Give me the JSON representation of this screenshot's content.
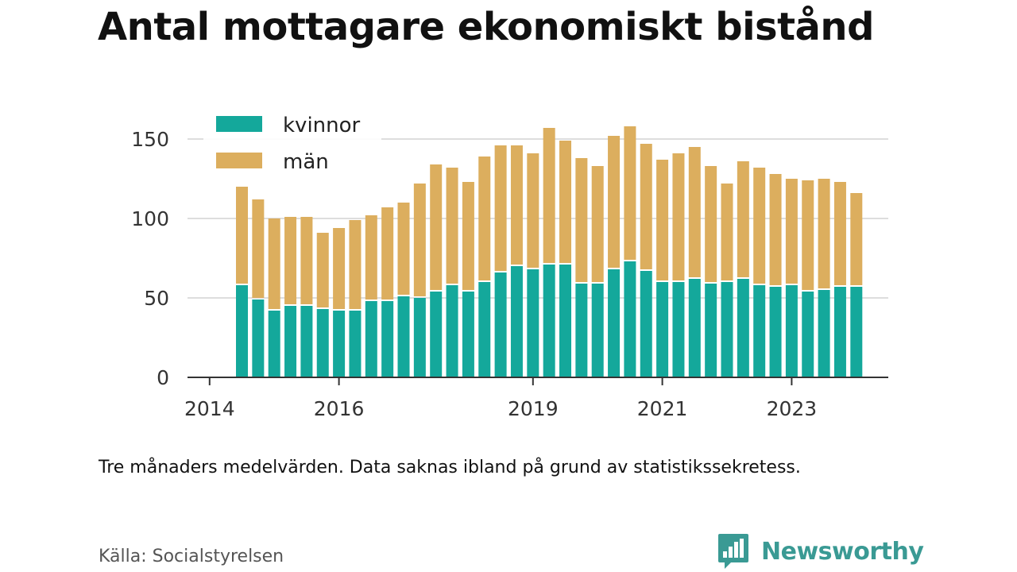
{
  "title": "Antal mottagare ekonomiskt bistånd",
  "note": "Tre månaders medelvärden. Data saknas ibland på grund av statistikssekretess.",
  "source": "Källa: Socialstyrelsen",
  "brand": {
    "name": "Newsworthy",
    "icon": "newsworthy-logo-icon"
  },
  "colors": {
    "kvinnor": "#14a89b",
    "man": "#dcae5e",
    "grid": "#dddddd",
    "axis": "#333333"
  },
  "chart_data": {
    "type": "bar",
    "stacked": true,
    "x": [
      "2014-07",
      "2014-10",
      "2015-01",
      "2015-04",
      "2015-07",
      "2015-10",
      "2016-01",
      "2016-04",
      "2016-07",
      "2016-10",
      "2017-01",
      "2017-04",
      "2017-07",
      "2017-10",
      "2018-01",
      "2018-04",
      "2018-07",
      "2018-10",
      "2019-01",
      "2019-04",
      "2019-07",
      "2019-10",
      "2020-01",
      "2020-04",
      "2020-07",
      "2020-10",
      "2021-01",
      "2021-04",
      "2021-07",
      "2021-10",
      "2022-01",
      "2022-04",
      "2022-07",
      "2022-10",
      "2023-01",
      "2023-04",
      "2023-07",
      "2023-10",
      "2024-01"
    ],
    "series": [
      {
        "name": "kvinnor",
        "values": [
          58,
          49,
          42,
          45,
          45,
          43,
          42,
          42,
          48,
          48,
          51,
          50,
          54,
          58,
          54,
          60,
          66,
          70,
          68,
          71,
          71,
          59,
          59,
          68,
          73,
          67,
          60,
          60,
          62,
          59,
          60,
          62,
          58,
          57,
          58,
          54,
          55,
          57,
          57
        ]
      },
      {
        "name": "män",
        "values": [
          62,
          63,
          58,
          56,
          56,
          48,
          52,
          57,
          54,
          59,
          59,
          72,
          80,
          74,
          69,
          79,
          80,
          76,
          73,
          86,
          78,
          79,
          74,
          84,
          85,
          80,
          77,
          81,
          83,
          74,
          62,
          74,
          74,
          71,
          67,
          70,
          70,
          66,
          59
        ]
      }
    ],
    "xticks": [
      "2014",
      "2016",
      "2019",
      "2021",
      "2023"
    ],
    "yticks": [
      0,
      50,
      100,
      150
    ],
    "ylim": [
      0,
      160
    ],
    "legend": "top-left",
    "grid": true
  }
}
